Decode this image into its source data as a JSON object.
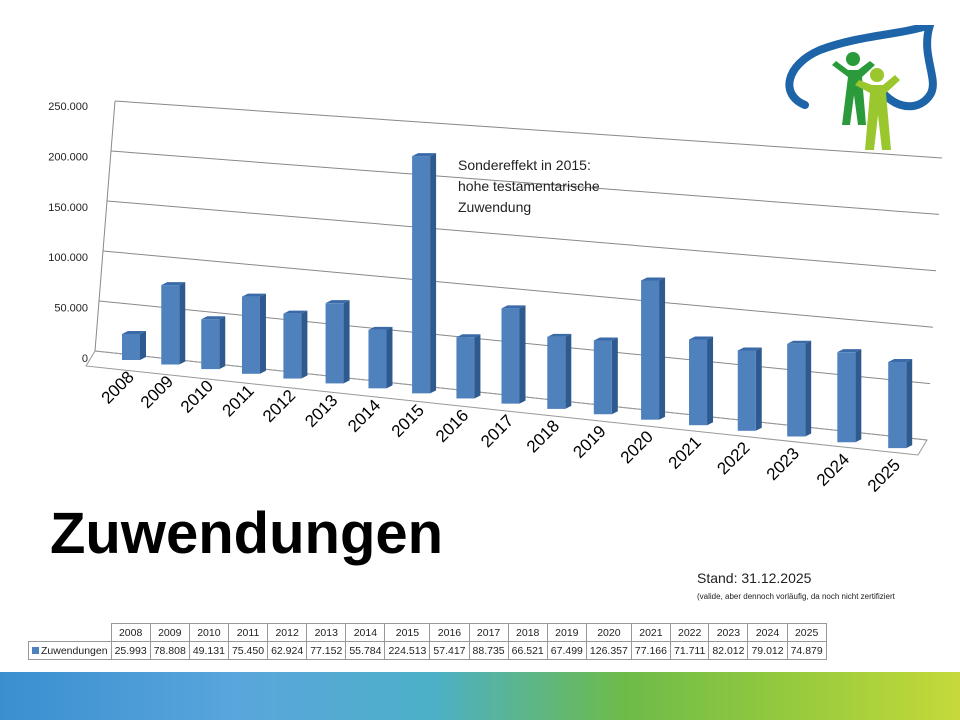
{
  "chart_data": {
    "type": "bar",
    "title": "Zuwendungen",
    "categories": [
      "2008",
      "2009",
      "2010",
      "2011",
      "2012",
      "2013",
      "2014",
      "2015",
      "2016",
      "2017",
      "2018",
      "2019",
      "2020",
      "2021",
      "2022",
      "2023",
      "2024",
      "2025"
    ],
    "series": [
      {
        "name": "Zuwendungen",
        "values": [
          25993,
          78808,
          49131,
          75450,
          62924,
          77152,
          55784,
          224513,
          57417,
          88735,
          66521,
          67499,
          126357,
          77166,
          71711,
          82012,
          79012,
          74879
        ]
      }
    ],
    "value_labels": [
      "25.993",
      "78.808",
      "49.131",
      "75.450",
      "62.924",
      "77.152",
      "55.784",
      "224.513",
      "57.417",
      "88.735",
      "66.521",
      "67.499",
      "126.357",
      "77.166",
      "71.711",
      "82.012",
      "79.012",
      "74.879"
    ],
    "yticks": [
      0,
      50000,
      100000,
      150000,
      200000,
      250000
    ],
    "ytick_labels": [
      "0",
      "50.000",
      "100.000",
      "150.000",
      "200.000",
      "250.000"
    ],
    "ylim": [
      0,
      250000
    ],
    "grid": true,
    "color": "#4f81bd",
    "annotation": [
      "Sondereffekt in 2015:",
      "hohe testamentarische",
      "Zuwendung"
    ]
  },
  "stand": "Stand: 31.12.2025",
  "stand_note": "(valide, aber dennoch vorläufig, da noch nicht zertifiziert"
}
